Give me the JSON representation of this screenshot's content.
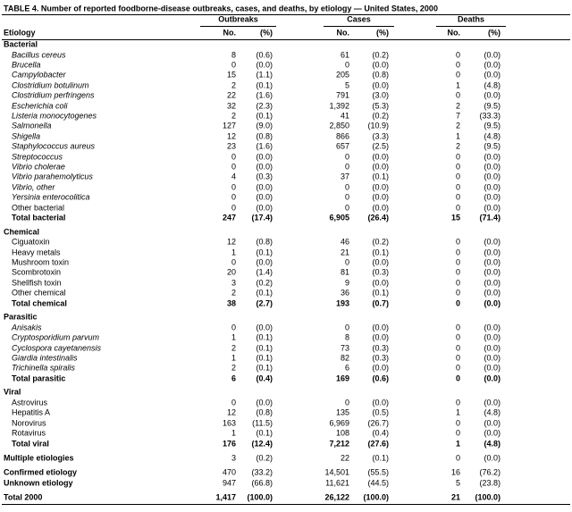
{
  "title": "TABLE 4. Number of reported foodborne-disease outbreaks, cases, and deaths, by etiology — United States, 2000",
  "header": {
    "groups": [
      "Outbreaks",
      "Cases",
      "Deaths"
    ],
    "columns": [
      "Etiology",
      "No.",
      "(%)",
      "No.",
      "(%)",
      "No.",
      "(%)"
    ]
  },
  "sections": [
    {
      "title": "Bacterial",
      "rows": [
        {
          "label": "Bacillus cereus",
          "italic": true,
          "cells": [
            "8",
            "(0.6)",
            "61",
            "(0.2)",
            "0",
            "(0.0)"
          ]
        },
        {
          "label": "Brucella",
          "italic": true,
          "cells": [
            "0",
            "(0.0)",
            "0",
            "(0.0)",
            "0",
            "(0.0)"
          ]
        },
        {
          "label": "Campylobacter",
          "italic": true,
          "cells": [
            "15",
            "(1.1)",
            "205",
            "(0.8)",
            "0",
            "(0.0)"
          ]
        },
        {
          "label": "Clostridium botulinum",
          "italic": true,
          "cells": [
            "2",
            "(0.1)",
            "5",
            "(0.0)",
            "1",
            "(4.8)"
          ]
        },
        {
          "label": "Clostridium perfringens",
          "italic": true,
          "cells": [
            "22",
            "(1.6)",
            "791",
            "(3.0)",
            "0",
            "(0.0)"
          ]
        },
        {
          "label": "Escherichia coli",
          "italic": true,
          "cells": [
            "32",
            "(2.3)",
            "1,392",
            "(5.3)",
            "2",
            "(9.5)"
          ]
        },
        {
          "label": "Listeria monocytogenes",
          "italic": true,
          "cells": [
            "2",
            "(0.1)",
            "41",
            "(0.2)",
            "7",
            "(33.3)"
          ]
        },
        {
          "label": "Salmonella",
          "italic": true,
          "cells": [
            "127",
            "(9.0)",
            "2,850",
            "(10.9)",
            "2",
            "(9.5)"
          ]
        },
        {
          "label": "Shigella",
          "italic": true,
          "cells": [
            "12",
            "(0.8)",
            "866",
            "(3.3)",
            "1",
            "(4.8)"
          ]
        },
        {
          "label": "Staphylococcus aureus",
          "italic": true,
          "cells": [
            "23",
            "(1.6)",
            "657",
            "(2.5)",
            "2",
            "(9.5)"
          ]
        },
        {
          "label": "Streptococcus",
          "italic": true,
          "cells": [
            "0",
            "(0.0)",
            "0",
            "(0.0)",
            "0",
            "(0.0)"
          ]
        },
        {
          "label": "Vibrio cholerae",
          "italic": true,
          "cells": [
            "0",
            "(0.0)",
            "0",
            "(0.0)",
            "0",
            "(0.0)"
          ]
        },
        {
          "label": "Vibrio parahemolyticus",
          "italic": true,
          "cells": [
            "4",
            "(0.3)",
            "37",
            "(0.1)",
            "0",
            "(0.0)"
          ]
        },
        {
          "label": "Vibrio, other",
          "italic": true,
          "cells": [
            "0",
            "(0.0)",
            "0",
            "(0.0)",
            "0",
            "(0.0)"
          ]
        },
        {
          "label": "Yersinia enterocolitica",
          "italic": true,
          "cells": [
            "0",
            "(0.0)",
            "0",
            "(0.0)",
            "0",
            "(0.0)"
          ]
        },
        {
          "label": "Other bacterial",
          "cells": [
            "0",
            "(0.0)",
            "0",
            "(0.0)",
            "0",
            "(0.0)"
          ]
        }
      ],
      "total": {
        "label": "Total bacterial",
        "cells": [
          "247",
          "(17.4)",
          "6,905",
          "(26.4)",
          "15",
          "(71.4)"
        ]
      }
    },
    {
      "title": "Chemical",
      "rows": [
        {
          "label": "Ciguatoxin",
          "cells": [
            "12",
            "(0.8)",
            "46",
            "(0.2)",
            "0",
            "(0.0)"
          ]
        },
        {
          "label": "Heavy metals",
          "cells": [
            "1",
            "(0.1)",
            "21",
            "(0.1)",
            "0",
            "(0.0)"
          ]
        },
        {
          "label": "Mushroom toxin",
          "cells": [
            "0",
            "(0.0)",
            "0",
            "(0.0)",
            "0",
            "(0.0)"
          ]
        },
        {
          "label": "Scombrotoxin",
          "cells": [
            "20",
            "(1.4)",
            "81",
            "(0.3)",
            "0",
            "(0.0)"
          ]
        },
        {
          "label": "Shellfish toxin",
          "cells": [
            "3",
            "(0.2)",
            "9",
            "(0.0)",
            "0",
            "(0.0)"
          ]
        },
        {
          "label": "Other chemical",
          "cells": [
            "2",
            "(0.1)",
            "36",
            "(0.1)",
            "0",
            "(0.0)"
          ]
        }
      ],
      "total": {
        "label": "Total chemical",
        "cells": [
          "38",
          "(2.7)",
          "193",
          "(0.7)",
          "0",
          "(0.0)"
        ]
      }
    },
    {
      "title": "Parasitic",
      "rows": [
        {
          "label": "Anisakis",
          "italic": true,
          "cells": [
            "0",
            "(0.0)",
            "0",
            "(0.0)",
            "0",
            "(0.0)"
          ]
        },
        {
          "label": "Cryptosporidium parvum",
          "italic": true,
          "cells": [
            "1",
            "(0.1)",
            "8",
            "(0.0)",
            "0",
            "(0.0)"
          ]
        },
        {
          "label": "Cyclospora cayetanensis",
          "italic": true,
          "cells": [
            "2",
            "(0.1)",
            "73",
            "(0.3)",
            "0",
            "(0.0)"
          ]
        },
        {
          "label": "Giardia intestinalis",
          "italic": true,
          "cells": [
            "1",
            "(0.1)",
            "82",
            "(0.3)",
            "0",
            "(0.0)"
          ]
        },
        {
          "label": "Trichinella spiralis",
          "italic": true,
          "cells": [
            "2",
            "(0.1)",
            "6",
            "(0.0)",
            "0",
            "(0.0)"
          ]
        }
      ],
      "total": {
        "label": "Total parasitic",
        "cells": [
          "6",
          "(0.4)",
          "169",
          "(0.6)",
          "0",
          "(0.0)"
        ]
      }
    },
    {
      "title": "Viral",
      "rows": [
        {
          "label": "Astrovirus",
          "cells": [
            "0",
            "(0.0)",
            "0",
            "(0.0)",
            "0",
            "(0.0)"
          ]
        },
        {
          "label": "Hepatitis A",
          "cells": [
            "12",
            "(0.8)",
            "135",
            "(0.5)",
            "1",
            "(4.8)"
          ]
        },
        {
          "label": "Norovirus",
          "cells": [
            "163",
            "(11.5)",
            "6,969",
            "(26.7)",
            "0",
            "(0.0)"
          ]
        },
        {
          "label": "Rotavirus",
          "cells": [
            "1",
            "(0.1)",
            "108",
            "(0.4)",
            "0",
            "(0.0)"
          ]
        }
      ],
      "total": {
        "label": "Total viral",
        "cells": [
          "176",
          "(12.4)",
          "7,212",
          "(27.6)",
          "1",
          "(4.8)"
        ]
      }
    }
  ],
  "summary": [
    {
      "label": "Multiple etiologies",
      "cells": [
        "3",
        "(0.2)",
        "22",
        "(0.1)",
        "0",
        "(0.0)"
      ]
    },
    {
      "label": "Confirmed etiology",
      "cells": [
        "470",
        "(33.2)",
        "14,501",
        "(55.5)",
        "16",
        "(76.2)"
      ]
    },
    {
      "label": "Unknown etiology",
      "cells": [
        "947",
        "(66.8)",
        "11,621",
        "(44.5)",
        "5",
        "(23.8)"
      ]
    }
  ],
  "grand_total": {
    "label": "Total 2000",
    "cells": [
      "1,417",
      "(100.0)",
      "26,122",
      "(100.0)",
      "21",
      "(100.0)"
    ]
  }
}
